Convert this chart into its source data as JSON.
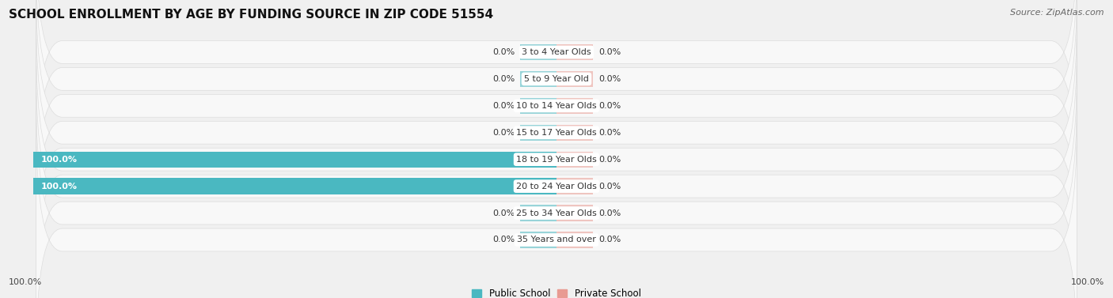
{
  "title": "SCHOOL ENROLLMENT BY AGE BY FUNDING SOURCE IN ZIP CODE 51554",
  "source": "Source: ZipAtlas.com",
  "categories": [
    "3 to 4 Year Olds",
    "5 to 9 Year Old",
    "10 to 14 Year Olds",
    "15 to 17 Year Olds",
    "18 to 19 Year Olds",
    "20 to 24 Year Olds",
    "25 to 34 Year Olds",
    "35 Years and over"
  ],
  "public_values": [
    0.0,
    0.0,
    0.0,
    0.0,
    100.0,
    100.0,
    0.0,
    0.0
  ],
  "private_values": [
    0.0,
    0.0,
    0.0,
    0.0,
    0.0,
    0.0,
    0.0,
    0.0
  ],
  "public_color": "#4ab8c1",
  "private_color": "#e89b92",
  "label_dark": "#333333",
  "label_light": "#ffffff",
  "bg_color": "#f0f0f0",
  "row_bg_light": "#f8f8f8",
  "row_border": "#dddddd",
  "stub_pct": 7.0,
  "title_fontsize": 11,
  "source_fontsize": 8,
  "bar_label_fontsize": 8,
  "cat_label_fontsize": 8,
  "legend_fontsize": 8.5,
  "axis_fontsize": 8,
  "x_min": -100,
  "x_max": 100,
  "left_axis_label": "100.0%",
  "right_axis_label": "100.0%",
  "legend_labels": [
    "Public School",
    "Private School"
  ]
}
